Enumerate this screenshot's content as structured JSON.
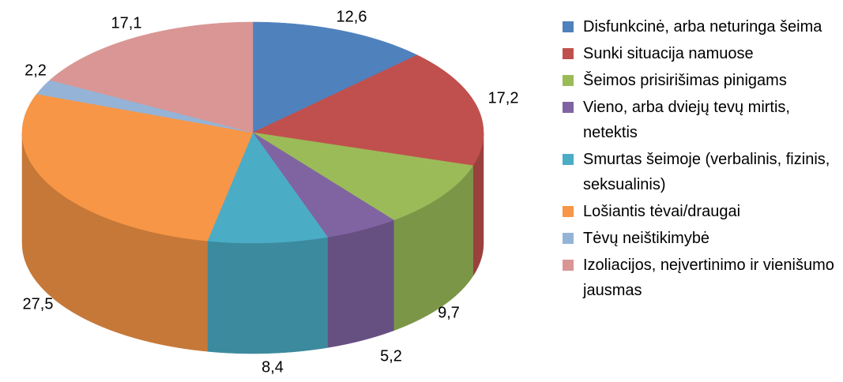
{
  "chart_data": {
    "type": "pie3d",
    "categories": [
      "Disfunkcinė, arba neturinga šeima",
      "Sunki situacija namuose",
      "Šeimos prisirišimas pinigams",
      "Vieno, arba dviejų tevų mirtis, netektis",
      "Smurtas šeimoje (verbalinis, fizinis, seksualinis)",
      "Lošiantis tėvai/draugai",
      "Tėvų neištikimybė",
      "Izoliacijos, neįvertinimo ir vienišumo jausmas"
    ],
    "values": [
      12.6,
      17.2,
      9.7,
      5.2,
      8.4,
      27.5,
      2.2,
      17.1
    ],
    "value_labels": [
      "12,6",
      "17,2",
      "9,7",
      "5,2",
      "8,4",
      "27,5",
      "2,2",
      "17,1"
    ],
    "colors": [
      "#4f81bd",
      "#c0504d",
      "#9bbb59",
      "#8064a2",
      "#4bacc6",
      "#f79646",
      "#95b3d7",
      "#d99694"
    ],
    "legend": "right"
  }
}
